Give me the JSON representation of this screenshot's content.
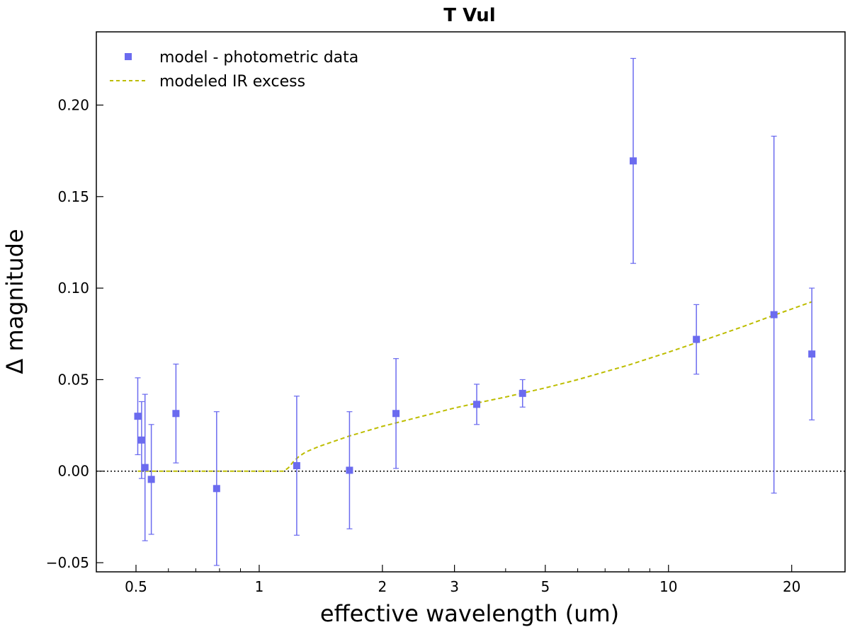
{
  "chart_data": {
    "type": "scatter",
    "title": "T Vul",
    "xlabel": "effective wavelength (um)",
    "ylabel": "Δ magnitude",
    "xscale": "log",
    "xlim": [
      0.4,
      27
    ],
    "ylim": [
      -0.055,
      0.24
    ],
    "x_tick_labels": [
      "0.5",
      "1",
      "2",
      "3",
      "5",
      "10",
      "20"
    ],
    "x_tick_values": [
      0.5,
      1,
      2,
      3,
      5,
      10,
      20
    ],
    "y_tick_labels": [
      "−0.05",
      "0.00",
      "0.05",
      "0.10",
      "0.15",
      "0.20"
    ],
    "y_tick_values": [
      -0.05,
      0.0,
      0.05,
      0.1,
      0.15,
      0.2
    ],
    "reference_line": {
      "y": 0.0,
      "style": "dotted",
      "color": "#000000"
    },
    "series": [
      {
        "name": "model - photometric data",
        "kind": "errorbar",
        "color": "#6b6bef",
        "points": [
          {
            "x": 0.505,
            "y": 0.03,
            "err": 0.021
          },
          {
            "x": 0.516,
            "y": 0.017,
            "err": 0.021
          },
          {
            "x": 0.526,
            "y": 0.002,
            "err": 0.04
          },
          {
            "x": 0.545,
            "y": -0.0045,
            "err": 0.03
          },
          {
            "x": 0.626,
            "y": 0.0315,
            "err": 0.027
          },
          {
            "x": 0.787,
            "y": -0.0095,
            "err": 0.042
          },
          {
            "x": 1.235,
            "y": 0.003,
            "err": 0.038
          },
          {
            "x": 1.662,
            "y": 0.0005,
            "err": 0.032
          },
          {
            "x": 2.159,
            "y": 0.0315,
            "err": 0.03
          },
          {
            "x": 3.4,
            "y": 0.0365,
            "err": 0.011
          },
          {
            "x": 4.4,
            "y": 0.0425,
            "err": 0.0075
          },
          {
            "x": 8.2,
            "y": 0.1695,
            "err": 0.056
          },
          {
            "x": 11.7,
            "y": 0.072,
            "err": 0.019
          },
          {
            "x": 18.1,
            "y": 0.0855,
            "err": 0.0975
          },
          {
            "x": 22.4,
            "y": 0.064,
            "err": 0.036
          }
        ]
      },
      {
        "name": "modeled IR excess",
        "kind": "line",
        "style": "dashed",
        "color": "#bdbd00",
        "x": [
          0.505,
          0.7,
          1.0,
          1.15,
          1.18,
          1.21,
          1.25,
          1.3,
          1.4,
          1.5,
          1.65,
          2.0,
          2.5,
          3.0,
          3.5,
          4.0,
          5.0,
          6.0,
          8.0,
          10.0,
          12.0,
          15.0,
          18.0,
          22.4
        ],
        "y": [
          0.0,
          0.0,
          0.0,
          0.0,
          0.002,
          0.005,
          0.008,
          0.0105,
          0.0135,
          0.0158,
          0.019,
          0.0245,
          0.03,
          0.0345,
          0.0378,
          0.0405,
          0.0455,
          0.05,
          0.058,
          0.065,
          0.071,
          0.0785,
          0.085,
          0.0925
        ]
      }
    ],
    "legend": {
      "location": "upper-left",
      "entries": [
        "model - photometric data",
        "modeled IR excess"
      ]
    }
  }
}
